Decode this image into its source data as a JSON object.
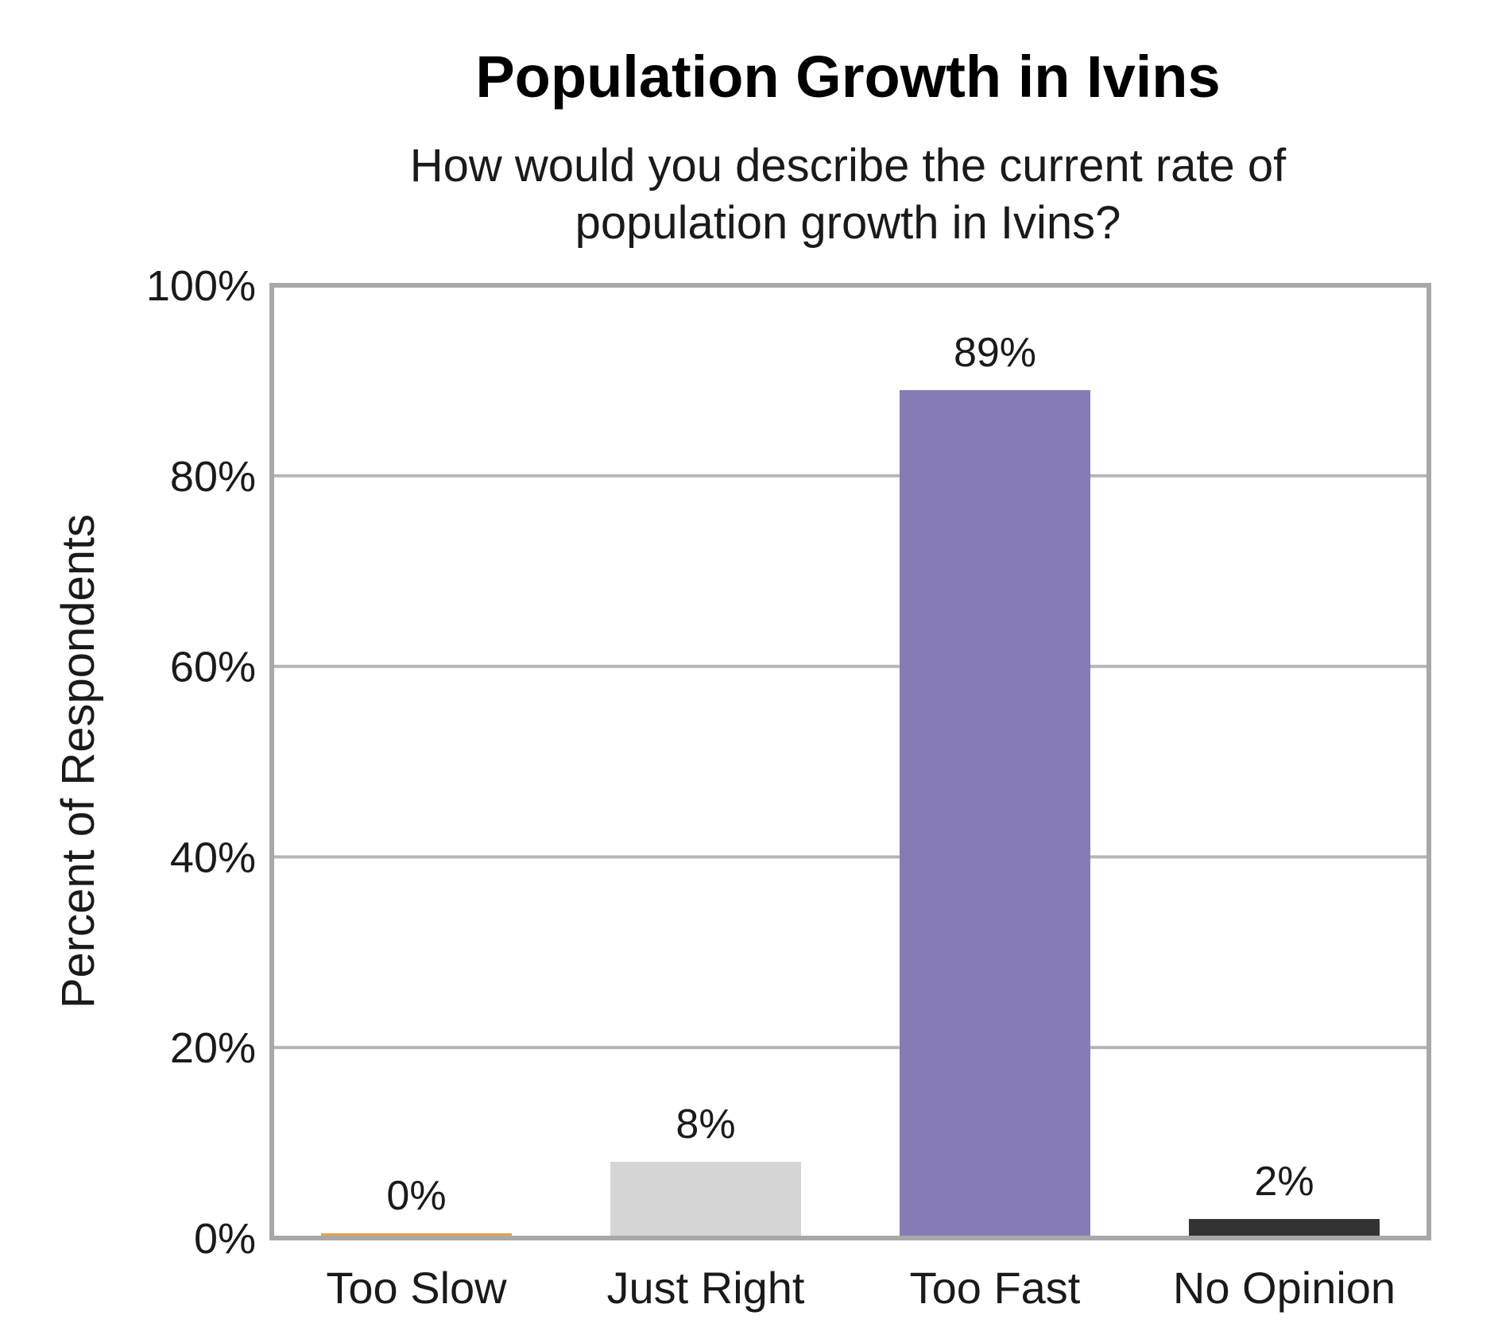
{
  "chart_data": {
    "type": "bar",
    "title": "Population Growth in Ivins",
    "subtitle_lines": [
      "How would you describe the current rate of",
      "population growth in Ivins?"
    ],
    "xlabel": "",
    "ylabel": "Percent of Respondents",
    "categories": [
      "Too Slow",
      "Just Right",
      "Too Fast",
      "No Opinion"
    ],
    "values": [
      0,
      8,
      89,
      2
    ],
    "data_labels": [
      "0%",
      "8%",
      "89%",
      "2%"
    ],
    "colors": [
      "#e8a04c",
      "#d5d5d5",
      "#877bb5",
      "#333333"
    ],
    "ylim": [
      0,
      100
    ],
    "yticks": [
      0,
      20,
      40,
      60,
      80,
      100
    ],
    "ytick_labels": [
      "0%",
      "20%",
      "40%",
      "60%",
      "80%",
      "100%"
    ],
    "grid": true,
    "legend": "none",
    "gridline_color": "#b5b5b5",
    "frame_color": "#a8a8a8"
  }
}
